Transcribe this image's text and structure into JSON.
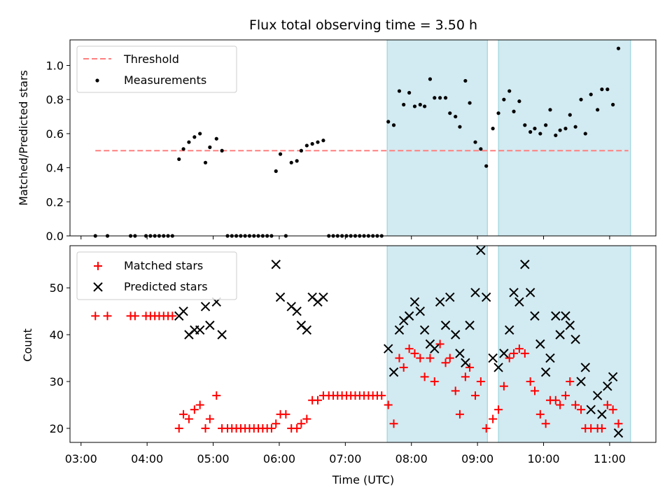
{
  "chart_data": {
    "title": "Flux total observing time = 3.50 h",
    "xlabel": "Time (UTC)",
    "x_ticks": [
      "03:00",
      "04:00",
      "05:00",
      "06:00",
      "07:00",
      "08:00",
      "09:00",
      "10:00",
      "11:00"
    ],
    "x_tick_hours": [
      3,
      4,
      5,
      6,
      7,
      8,
      9,
      10,
      11
    ],
    "xlim_hours": [
      2.833,
      11.7
    ],
    "shaded_intervals_hours": [
      [
        7.633,
        9.15
      ],
      [
        9.317,
        11.317
      ]
    ],
    "shade_color": "#add8e6",
    "top": {
      "type": "scatter",
      "ylabel": "Matched/Predicted stars",
      "ylim": [
        0,
        1.15
      ],
      "y_ticks": [
        "0.0",
        "0.2",
        "0.4",
        "0.6",
        "0.8",
        "1.0"
      ],
      "y_tick_values": [
        0,
        0.2,
        0.4,
        0.6,
        0.8,
        1.0
      ],
      "threshold": {
        "name": "Threshold",
        "value": 0.5,
        "x_range_hours": [
          3.217,
          11.283
        ],
        "color": "#ff7f7f"
      },
      "measurements": {
        "name": "Measurements",
        "color": "#000000",
        "points": [
          [
            3.217,
            0
          ],
          [
            3.4,
            0
          ],
          [
            3.75,
            0
          ],
          [
            3.817,
            0
          ],
          [
            3.983,
            0
          ],
          [
            4.05,
            0
          ],
          [
            4.117,
            0
          ],
          [
            4.183,
            0
          ],
          [
            4.25,
            0
          ],
          [
            4.317,
            0
          ],
          [
            4.383,
            0
          ],
          [
            4.483,
            0.45
          ],
          [
            4.55,
            0.51
          ],
          [
            4.633,
            0.55
          ],
          [
            4.717,
            0.58
          ],
          [
            4.8,
            0.6
          ],
          [
            4.883,
            0.43
          ],
          [
            4.95,
            0.52
          ],
          [
            5.05,
            0.57
          ],
          [
            5.133,
            0.5
          ],
          [
            5.217,
            0
          ],
          [
            5.283,
            0
          ],
          [
            5.35,
            0
          ],
          [
            5.417,
            0
          ],
          [
            5.483,
            0
          ],
          [
            5.55,
            0
          ],
          [
            5.617,
            0
          ],
          [
            5.683,
            0
          ],
          [
            5.75,
            0
          ],
          [
            5.817,
            0
          ],
          [
            5.883,
            0
          ],
          [
            5.95,
            0.38
          ],
          [
            6.017,
            0.48
          ],
          [
            6.1,
            0
          ],
          [
            6.183,
            0.43
          ],
          [
            6.267,
            0.44
          ],
          [
            6.333,
            0.5
          ],
          [
            6.417,
            0.53
          ],
          [
            6.5,
            0.54
          ],
          [
            6.583,
            0.55
          ],
          [
            6.667,
            0.56
          ],
          [
            6.75,
            0
          ],
          [
            6.817,
            0
          ],
          [
            6.883,
            0
          ],
          [
            6.95,
            0
          ],
          [
            7.017,
            0
          ],
          [
            7.083,
            0
          ],
          [
            7.15,
            0
          ],
          [
            7.217,
            0
          ],
          [
            7.283,
            0
          ],
          [
            7.35,
            0
          ],
          [
            7.417,
            0
          ],
          [
            7.483,
            0
          ],
          [
            7.55,
            0
          ],
          [
            7.65,
            0.67
          ],
          [
            7.733,
            0.65
          ],
          [
            7.817,
            0.85
          ],
          [
            7.883,
            0.77
          ],
          [
            7.967,
            0.84
          ],
          [
            8.05,
            0.76
          ],
          [
            8.133,
            0.77
          ],
          [
            8.2,
            0.76
          ],
          [
            8.283,
            0.92
          ],
          [
            8.35,
            0.81
          ],
          [
            8.433,
            0.81
          ],
          [
            8.517,
            0.81
          ],
          [
            8.583,
            0.72
          ],
          [
            8.667,
            0.7
          ],
          [
            8.733,
            0.64
          ],
          [
            8.817,
            0.91
          ],
          [
            8.883,
            0.78
          ],
          [
            8.967,
            0.55
          ],
          [
            9.05,
            0.51
          ],
          [
            9.133,
            0.41
          ],
          [
            9.233,
            0.63
          ],
          [
            9.317,
            0.72
          ],
          [
            9.4,
            0.8
          ],
          [
            9.483,
            0.85
          ],
          [
            9.55,
            0.73
          ],
          [
            9.633,
            0.79
          ],
          [
            9.717,
            0.65
          ],
          [
            9.8,
            0.61
          ],
          [
            9.867,
            0.63
          ],
          [
            9.95,
            0.6
          ],
          [
            10.033,
            0.65
          ],
          [
            10.1,
            0.74
          ],
          [
            10.183,
            0.59
          ],
          [
            10.25,
            0.62
          ],
          [
            10.333,
            0.63
          ],
          [
            10.4,
            0.71
          ],
          [
            10.483,
            0.64
          ],
          [
            10.567,
            0.8
          ],
          [
            10.633,
            0.6
          ],
          [
            10.717,
            0.83
          ],
          [
            10.817,
            0.74
          ],
          [
            10.883,
            0.86
          ],
          [
            10.967,
            0.86
          ],
          [
            11.05,
            0.77
          ],
          [
            11.133,
            1.1
          ]
        ]
      }
    },
    "bottom": {
      "type": "scatter",
      "ylabel": "Count",
      "ylim": [
        17,
        59
      ],
      "y_ticks": [
        "20",
        "30",
        "40",
        "50"
      ],
      "y_tick_values": [
        20,
        30,
        40,
        50
      ],
      "matched": {
        "name": "Matched stars",
        "color": "#ff0000",
        "points": [
          [
            3.217,
            44
          ],
          [
            3.4,
            44
          ],
          [
            3.75,
            44
          ],
          [
            3.817,
            44
          ],
          [
            3.983,
            44
          ],
          [
            4.05,
            44
          ],
          [
            4.117,
            44
          ],
          [
            4.183,
            44
          ],
          [
            4.25,
            44
          ],
          [
            4.317,
            44
          ],
          [
            4.383,
            44
          ],
          [
            4.483,
            20
          ],
          [
            4.55,
            23
          ],
          [
            4.633,
            22
          ],
          [
            4.717,
            24
          ],
          [
            4.8,
            25
          ],
          [
            4.883,
            20
          ],
          [
            4.95,
            22
          ],
          [
            5.05,
            27
          ],
          [
            5.133,
            20
          ],
          [
            5.217,
            20
          ],
          [
            5.283,
            20
          ],
          [
            5.35,
            20
          ],
          [
            5.417,
            20
          ],
          [
            5.483,
            20
          ],
          [
            5.55,
            20
          ],
          [
            5.617,
            20
          ],
          [
            5.683,
            20
          ],
          [
            5.75,
            20
          ],
          [
            5.817,
            20
          ],
          [
            5.883,
            20
          ],
          [
            5.95,
            21
          ],
          [
            6.017,
            23
          ],
          [
            6.1,
            23
          ],
          [
            6.183,
            20
          ],
          [
            6.267,
            20
          ],
          [
            6.333,
            21
          ],
          [
            6.417,
            22
          ],
          [
            6.5,
            26
          ],
          [
            6.583,
            26
          ],
          [
            6.667,
            27
          ],
          [
            6.75,
            27
          ],
          [
            6.817,
            27
          ],
          [
            6.883,
            27
          ],
          [
            6.95,
            27
          ],
          [
            7.017,
            27
          ],
          [
            7.083,
            27
          ],
          [
            7.15,
            27
          ],
          [
            7.217,
            27
          ],
          [
            7.283,
            27
          ],
          [
            7.35,
            27
          ],
          [
            7.417,
            27
          ],
          [
            7.483,
            27
          ],
          [
            7.55,
            27
          ],
          [
            7.65,
            25
          ],
          [
            7.733,
            21
          ],
          [
            7.817,
            35
          ],
          [
            7.883,
            33
          ],
          [
            7.967,
            37
          ],
          [
            8.05,
            36
          ],
          [
            8.133,
            35
          ],
          [
            8.2,
            31
          ],
          [
            8.283,
            35
          ],
          [
            8.35,
            30
          ],
          [
            8.433,
            38
          ],
          [
            8.517,
            34
          ],
          [
            8.583,
            35
          ],
          [
            8.667,
            28
          ],
          [
            8.733,
            23
          ],
          [
            8.817,
            31
          ],
          [
            8.883,
            33
          ],
          [
            8.967,
            27
          ],
          [
            9.05,
            30
          ],
          [
            9.133,
            20
          ],
          [
            9.233,
            22
          ],
          [
            9.317,
            24
          ],
          [
            9.4,
            29
          ],
          [
            9.483,
            35
          ],
          [
            9.55,
            36
          ],
          [
            9.633,
            37
          ],
          [
            9.717,
            36
          ],
          [
            9.8,
            30
          ],
          [
            9.867,
            28
          ],
          [
            9.95,
            23
          ],
          [
            10.033,
            21
          ],
          [
            10.1,
            26
          ],
          [
            10.183,
            26
          ],
          [
            10.25,
            25
          ],
          [
            10.333,
            27
          ],
          [
            10.4,
            30
          ],
          [
            10.483,
            25
          ],
          [
            10.567,
            24
          ],
          [
            10.633,
            20
          ],
          [
            10.717,
            20
          ],
          [
            10.817,
            20
          ],
          [
            10.883,
            20
          ],
          [
            10.967,
            25
          ],
          [
            11.05,
            24
          ],
          [
            11.133,
            21
          ]
        ]
      },
      "predicted": {
        "name": "Predicted stars",
        "color": "#000000",
        "points": [
          [
            4.483,
            44
          ],
          [
            4.55,
            45
          ],
          [
            4.633,
            40
          ],
          [
            4.717,
            41
          ],
          [
            4.8,
            41
          ],
          [
            4.883,
            46
          ],
          [
            4.95,
            42
          ],
          [
            5.05,
            47
          ],
          [
            5.133,
            40
          ],
          [
            5.95,
            55
          ],
          [
            6.017,
            48
          ],
          [
            6.183,
            46
          ],
          [
            6.267,
            45
          ],
          [
            6.333,
            42
          ],
          [
            6.417,
            41
          ],
          [
            6.5,
            48
          ],
          [
            6.583,
            47
          ],
          [
            6.667,
            48
          ],
          [
            7.65,
            37
          ],
          [
            7.733,
            32
          ],
          [
            7.817,
            41
          ],
          [
            7.883,
            43
          ],
          [
            7.967,
            44
          ],
          [
            8.05,
            47
          ],
          [
            8.133,
            45
          ],
          [
            8.2,
            41
          ],
          [
            8.283,
            38
          ],
          [
            8.35,
            37
          ],
          [
            8.433,
            47
          ],
          [
            8.517,
            42
          ],
          [
            8.583,
            48
          ],
          [
            8.667,
            40
          ],
          [
            8.733,
            36
          ],
          [
            8.817,
            34
          ],
          [
            8.883,
            42
          ],
          [
            8.967,
            49
          ],
          [
            9.05,
            58
          ],
          [
            9.133,
            48
          ],
          [
            9.233,
            35
          ],
          [
            9.317,
            33
          ],
          [
            9.4,
            36
          ],
          [
            9.483,
            41
          ],
          [
            9.55,
            49
          ],
          [
            9.633,
            47
          ],
          [
            9.717,
            55
          ],
          [
            9.8,
            49
          ],
          [
            9.867,
            44
          ],
          [
            9.95,
            38
          ],
          [
            10.033,
            32
          ],
          [
            10.1,
            35
          ],
          [
            10.183,
            44
          ],
          [
            10.25,
            40
          ],
          [
            10.333,
            44
          ],
          [
            10.4,
            42
          ],
          [
            10.483,
            39
          ],
          [
            10.567,
            30
          ],
          [
            10.633,
            33
          ],
          [
            10.717,
            24
          ],
          [
            10.817,
            27
          ],
          [
            10.883,
            23
          ],
          [
            10.967,
            29
          ],
          [
            11.05,
            31
          ],
          [
            11.133,
            19
          ]
        ]
      }
    }
  }
}
